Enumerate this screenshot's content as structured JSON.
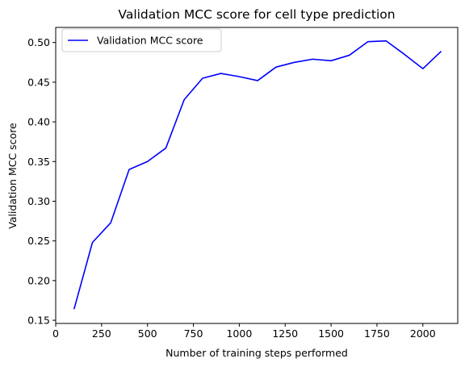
{
  "chart_data": {
    "type": "line",
    "title": "Validation MCC score for cell type prediction",
    "xlabel": "Number of training steps performed",
    "ylabel": "Validation MCC score",
    "xlim": [
      0,
      2190
    ],
    "ylim": [
      0.146,
      0.519
    ],
    "xticks": [
      0,
      250,
      500,
      750,
      1000,
      1250,
      1500,
      1750,
      2000
    ],
    "yticks": [
      0.15,
      0.2,
      0.25,
      0.3,
      0.35,
      0.4,
      0.45,
      0.5
    ],
    "grid": false,
    "legend_position": "top-left",
    "series": [
      {
        "name": "Validation MCC score",
        "color": "#0000ff",
        "x": [
          100,
          200,
          300,
          400,
          500,
          600,
          700,
          800,
          900,
          1000,
          1100,
          1200,
          1300,
          1400,
          1500,
          1600,
          1700,
          1800,
          1900,
          2000,
          2100
        ],
        "y": [
          0.164,
          0.248,
          0.273,
          0.34,
          0.35,
          0.367,
          0.428,
          0.455,
          0.461,
          0.457,
          0.452,
          0.469,
          0.475,
          0.479,
          0.477,
          0.484,
          0.501,
          0.502,
          0.485,
          0.467,
          0.489
        ]
      }
    ]
  }
}
